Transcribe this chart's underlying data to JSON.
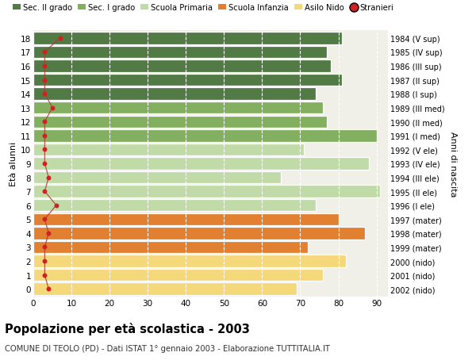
{
  "ages": [
    18,
    17,
    16,
    15,
    14,
    13,
    12,
    11,
    10,
    9,
    8,
    7,
    6,
    5,
    4,
    3,
    2,
    1,
    0
  ],
  "years": [
    "1984 (V sup)",
    "1985 (IV sup)",
    "1986 (III sup)",
    "1987 (II sup)",
    "1988 (I sup)",
    "1989 (III med)",
    "1990 (II med)",
    "1991 (I med)",
    "1992 (V ele)",
    "1993 (IV ele)",
    "1994 (III ele)",
    "1995 (II ele)",
    "1996 (I ele)",
    "1997 (mater)",
    "1998 (mater)",
    "1999 (mater)",
    "2000 (nido)",
    "2001 (nido)",
    "2002 (nido)"
  ],
  "values": [
    81,
    77,
    78,
    81,
    74,
    76,
    77,
    90,
    71,
    88,
    65,
    91,
    74,
    80,
    87,
    72,
    82,
    76,
    69
  ],
  "stranieri": [
    7,
    3,
    3,
    3,
    3,
    5,
    3,
    3,
    3,
    3,
    4,
    3,
    6,
    3,
    4,
    3,
    3,
    3,
    4
  ],
  "bar_colors": {
    "sec2": "#527a45",
    "sec1": "#82b060",
    "primaria": "#c0dba8",
    "infanzia": "#e08030",
    "nido": "#f5d87a"
  },
  "age_categories": {
    "sec2": [
      14,
      15,
      16,
      17,
      18
    ],
    "sec1": [
      11,
      12,
      13
    ],
    "primaria": [
      6,
      7,
      8,
      9,
      10
    ],
    "infanzia": [
      3,
      4,
      5
    ],
    "nido": [
      0,
      1,
      2
    ]
  },
  "legend_labels": [
    "Sec. II grado",
    "Sec. I grado",
    "Scuola Primaria",
    "Scuola Infanzia",
    "Asilo Nido",
    "Stranieri"
  ],
  "ylabel": "Età alunni",
  "ylabel_right": "Anni di nascita",
  "title": "Popolazione per età scolastica - 2003",
  "subtitle": "COMUNE DI TEOLO (PD) - Dati ISTAT 1° gennaio 2003 - Elaborazione TUTTITALIA.IT",
  "xlim": [
    0,
    93
  ],
  "xticks": [
    0,
    10,
    20,
    30,
    40,
    50,
    60,
    70,
    80,
    90
  ],
  "stranieri_color": "#cc2222",
  "stranieri_line_color": "#b03a2e",
  "bg_color": "#ffffff",
  "plot_bg": "#f0f0e8"
}
